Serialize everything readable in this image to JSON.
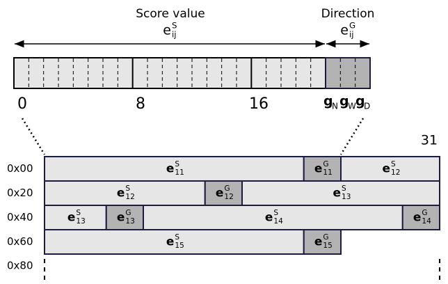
{
  "header": {
    "score_label": "Score value",
    "score_symbol": {
      "base": "e",
      "sup": "S",
      "sub": "ij"
    },
    "direction_label": "Direction",
    "direction_symbol": {
      "base": "e",
      "sup": "G",
      "sub": "ij"
    }
  },
  "bit_labels": [
    "0",
    "8",
    "16"
  ],
  "direction_bits": [
    {
      "base": "g",
      "sub": "N"
    },
    {
      "base": "g",
      "sub": "W"
    },
    {
      "base": "g",
      "sub": "D"
    }
  ],
  "top_bit": "31",
  "rows": [
    {
      "address": "0x00",
      "cells": [
        {
          "base": "e",
          "sup": "S",
          "sub": "11"
        },
        {
          "base": "e",
          "sup": "G",
          "sub": "11"
        },
        {
          "base": "e",
          "sup": "S",
          "sub": "12"
        }
      ]
    },
    {
      "address": "0x20",
      "cells": [
        {
          "base": "e",
          "sup": "S",
          "sub": "12"
        },
        {
          "base": "e",
          "sup": "G",
          "sub": "12"
        },
        {
          "base": "e",
          "sup": "S",
          "sub": "13"
        }
      ]
    },
    {
      "address": "0x40",
      "cells": [
        {
          "base": "e",
          "sup": "S",
          "sub": "13"
        },
        {
          "base": "e",
          "sup": "G",
          "sub": "13"
        },
        {
          "base": "e",
          "sup": "S",
          "sub": "14"
        },
        {
          "base": "e",
          "sup": "G",
          "sub": "14"
        }
      ]
    },
    {
      "address": "0x60",
      "cells": [
        {
          "base": "e",
          "sup": "S",
          "sub": "15"
        },
        {
          "base": "e",
          "sup": "G",
          "sub": "15"
        }
      ]
    }
  ],
  "end_address": "0x80"
}
